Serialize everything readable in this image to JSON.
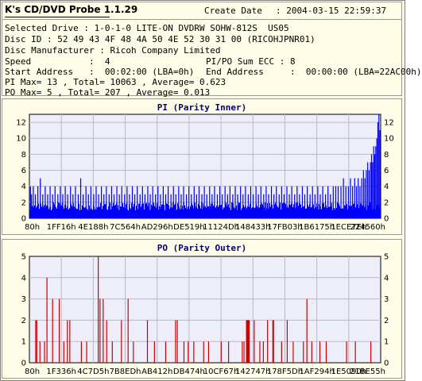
{
  "app": {
    "title": "K's CD/DVD Probe 1.1.29"
  },
  "info": {
    "create_label": "Create Date",
    "create_value": ":  2004-03-15 22:59:37",
    "rows": [
      "Selected Drive : 1-0-1-0 LITE-ON DVDRW SOHW-812S  US05",
      "Disc ID : 52 49 43 4F 48 4A 50 4E 52 30 31 00 (RICOHJPNR01)",
      "Disc Manufacturer : Ricoh Company Limited",
      "Speed           :  4",
      "PI/PO Sum ECC : 8",
      "Start Address   :  00:02:00 (LBA=0h)",
      "End Address     :  00:00:00 (LBA=22AC00h)",
      "PI Max= 13 , Total= 10063 , Average= 0.623",
      "PO Max= 5 , Total= 207 , Average= 0.013"
    ]
  },
  "colors": {
    "pi": "#0000ff",
    "po": "#cc0000",
    "plot_bg": "#eeeefa",
    "grid": "#b8b8c8",
    "title": "#00007f",
    "panel_bg": "#fffde8"
  },
  "chart_data": [
    {
      "type": "bar",
      "title": "PI (Parity Inner)",
      "ylim": [
        0,
        13
      ],
      "y_ticks": [
        "0",
        "2",
        "4",
        "6",
        "8",
        "10",
        "12"
      ],
      "x_ticks": [
        "80h",
        "1FF16h",
        "4E188h",
        "7C564h",
        "AD296h",
        "DE519h",
        "11124Dh",
        "148433h",
        "17FB03h",
        "1B6175h",
        "1ECE7Eh",
        "224560h"
      ],
      "x_range": [
        "80h",
        "22AC00h"
      ],
      "grid": true,
      "baseline": {
        "min": 1,
        "max": 2
      },
      "spikes": [
        [
          0.003,
          4
        ],
        [
          0.006,
          3
        ],
        [
          0.011,
          4
        ],
        [
          0.017,
          3
        ],
        [
          0.024,
          4
        ],
        [
          0.031,
          5
        ],
        [
          0.038,
          3
        ],
        [
          0.045,
          4
        ],
        [
          0.052,
          3
        ],
        [
          0.059,
          4
        ],
        [
          0.066,
          3
        ],
        [
          0.073,
          4
        ],
        [
          0.081,
          3
        ],
        [
          0.088,
          4
        ],
        [
          0.095,
          3
        ],
        [
          0.102,
          4
        ],
        [
          0.109,
          3
        ],
        [
          0.117,
          4
        ],
        [
          0.124,
          3
        ],
        [
          0.131,
          4
        ],
        [
          0.139,
          3
        ],
        [
          0.146,
          5
        ],
        [
          0.153,
          3
        ],
        [
          0.161,
          4
        ],
        [
          0.168,
          3
        ],
        [
          0.175,
          4
        ],
        [
          0.183,
          3
        ],
        [
          0.19,
          4
        ],
        [
          0.197,
          3
        ],
        [
          0.205,
          4
        ],
        [
          0.212,
          3
        ],
        [
          0.219,
          4
        ],
        [
          0.227,
          3
        ],
        [
          0.234,
          4
        ],
        [
          0.241,
          3
        ],
        [
          0.249,
          4
        ],
        [
          0.256,
          3
        ],
        [
          0.263,
          4
        ],
        [
          0.271,
          3
        ],
        [
          0.278,
          4
        ],
        [
          0.285,
          3
        ],
        [
          0.293,
          4
        ],
        [
          0.3,
          3
        ],
        [
          0.307,
          4
        ],
        [
          0.315,
          3
        ],
        [
          0.322,
          4
        ],
        [
          0.329,
          3
        ],
        [
          0.337,
          4
        ],
        [
          0.344,
          3
        ],
        [
          0.351,
          4
        ],
        [
          0.359,
          3
        ],
        [
          0.366,
          4
        ],
        [
          0.373,
          3
        ],
        [
          0.381,
          4
        ],
        [
          0.388,
          3
        ],
        [
          0.395,
          4
        ],
        [
          0.403,
          3
        ],
        [
          0.41,
          4
        ],
        [
          0.417,
          3
        ],
        [
          0.425,
          4
        ],
        [
          0.432,
          3
        ],
        [
          0.439,
          4
        ],
        [
          0.447,
          3
        ],
        [
          0.454,
          4
        ],
        [
          0.461,
          3
        ],
        [
          0.469,
          4
        ],
        [
          0.476,
          3
        ],
        [
          0.483,
          4
        ],
        [
          0.491,
          3
        ],
        [
          0.498,
          4
        ],
        [
          0.505,
          3
        ],
        [
          0.513,
          4
        ],
        [
          0.52,
          3
        ],
        [
          0.527,
          4
        ],
        [
          0.535,
          3
        ],
        [
          0.542,
          4
        ],
        [
          0.549,
          3
        ],
        [
          0.557,
          4
        ],
        [
          0.564,
          3
        ],
        [
          0.571,
          4
        ],
        [
          0.579,
          3
        ],
        [
          0.586,
          4
        ],
        [
          0.593,
          3
        ],
        [
          0.601,
          4
        ],
        [
          0.608,
          3
        ],
        [
          0.615,
          4
        ],
        [
          0.623,
          3
        ],
        [
          0.63,
          4
        ],
        [
          0.637,
          3
        ],
        [
          0.645,
          4
        ],
        [
          0.652,
          3
        ],
        [
          0.659,
          4
        ],
        [
          0.667,
          3
        ],
        [
          0.674,
          4
        ],
        [
          0.681,
          3
        ],
        [
          0.689,
          4
        ],
        [
          0.696,
          3
        ],
        [
          0.703,
          4
        ],
        [
          0.711,
          3
        ],
        [
          0.718,
          4
        ],
        [
          0.725,
          3
        ],
        [
          0.733,
          4
        ],
        [
          0.74,
          3
        ],
        [
          0.747,
          4
        ],
        [
          0.755,
          3
        ],
        [
          0.762,
          4
        ],
        [
          0.769,
          3
        ],
        [
          0.777,
          4
        ],
        [
          0.784,
          3
        ],
        [
          0.791,
          4
        ],
        [
          0.799,
          3
        ],
        [
          0.806,
          4
        ],
        [
          0.813,
          3
        ],
        [
          0.821,
          4
        ],
        [
          0.828,
          3
        ],
        [
          0.835,
          4
        ],
        [
          0.843,
          3
        ],
        [
          0.85,
          4
        ],
        [
          0.857,
          3
        ],
        [
          0.865,
          4
        ],
        [
          0.872,
          4
        ],
        [
          0.879,
          4
        ],
        [
          0.887,
          4
        ],
        [
          0.894,
          5
        ],
        [
          0.901,
          4
        ],
        [
          0.908,
          4
        ],
        [
          0.914,
          5
        ],
        [
          0.92,
          4
        ],
        [
          0.926,
          5
        ],
        [
          0.931,
          4
        ],
        [
          0.936,
          5
        ],
        [
          0.941,
          4
        ],
        [
          0.946,
          5
        ],
        [
          0.951,
          6
        ],
        [
          0.955,
          5
        ],
        [
          0.959,
          6
        ],
        [
          0.963,
          7
        ],
        [
          0.967,
          6
        ],
        [
          0.971,
          7
        ],
        [
          0.974,
          8
        ],
        [
          0.977,
          7
        ],
        [
          0.98,
          9
        ],
        [
          0.983,
          8
        ],
        [
          0.986,
          9
        ],
        [
          0.989,
          10
        ],
        [
          0.992,
          12
        ],
        [
          0.995,
          13
        ],
        [
          0.998,
          11
        ]
      ]
    },
    {
      "type": "bar",
      "title": "PO (Parity Outer)",
      "ylim": [
        0,
        5
      ],
      "y_ticks": [
        "0",
        "1",
        "2",
        "3",
        "4",
        "5"
      ],
      "x_ticks": [
        "80h",
        "1F336h",
        "4C7D5h",
        "7B8EDh",
        "AB412h",
        "DB474h",
        "10CF67h",
        "142747h",
        "178F5Dh",
        "1AF294h",
        "1E5090h",
        "21BE55h"
      ],
      "x_range": [
        "80h",
        "22AC00h"
      ],
      "grid": true,
      "bars": [
        [
          0.018,
          2
        ],
        [
          0.021,
          2
        ],
        [
          0.03,
          1
        ],
        [
          0.043,
          1
        ],
        [
          0.05,
          4
        ],
        [
          0.066,
          3
        ],
        [
          0.085,
          3
        ],
        [
          0.098,
          1
        ],
        [
          0.108,
          2
        ],
        [
          0.115,
          2
        ],
        [
          0.148,
          1
        ],
        [
          0.163,
          1
        ],
        [
          0.196,
          5
        ],
        [
          0.201,
          3
        ],
        [
          0.21,
          3
        ],
        [
          0.22,
          2
        ],
        [
          0.236,
          1
        ],
        [
          0.262,
          2
        ],
        [
          0.281,
          3
        ],
        [
          0.296,
          1
        ],
        [
          0.336,
          2
        ],
        [
          0.356,
          1
        ],
        [
          0.388,
          1
        ],
        [
          0.416,
          2
        ],
        [
          0.421,
          2
        ],
        [
          0.44,
          1
        ],
        [
          0.452,
          1
        ],
        [
          0.468,
          1
        ],
        [
          0.496,
          1
        ],
        [
          0.51,
          1
        ],
        [
          0.546,
          1
        ],
        [
          0.567,
          1
        ],
        [
          0.606,
          1
        ],
        [
          0.611,
          1
        ],
        [
          0.618,
          2
        ],
        [
          0.62,
          2
        ],
        [
          0.622,
          2
        ],
        [
          0.624,
          2
        ],
        [
          0.626,
          2
        ],
        [
          0.64,
          2
        ],
        [
          0.656,
          1
        ],
        [
          0.666,
          1
        ],
        [
          0.678,
          2
        ],
        [
          0.693,
          2
        ],
        [
          0.695,
          2
        ],
        [
          0.718,
          1
        ],
        [
          0.734,
          2
        ],
        [
          0.751,
          1
        ],
        [
          0.78,
          1
        ],
        [
          0.79,
          3
        ],
        [
          0.804,
          1
        ],
        [
          0.827,
          1
        ],
        [
          0.845,
          1
        ],
        [
          0.903,
          1
        ],
        [
          0.928,
          1
        ],
        [
          0.972,
          1
        ]
      ]
    }
  ]
}
